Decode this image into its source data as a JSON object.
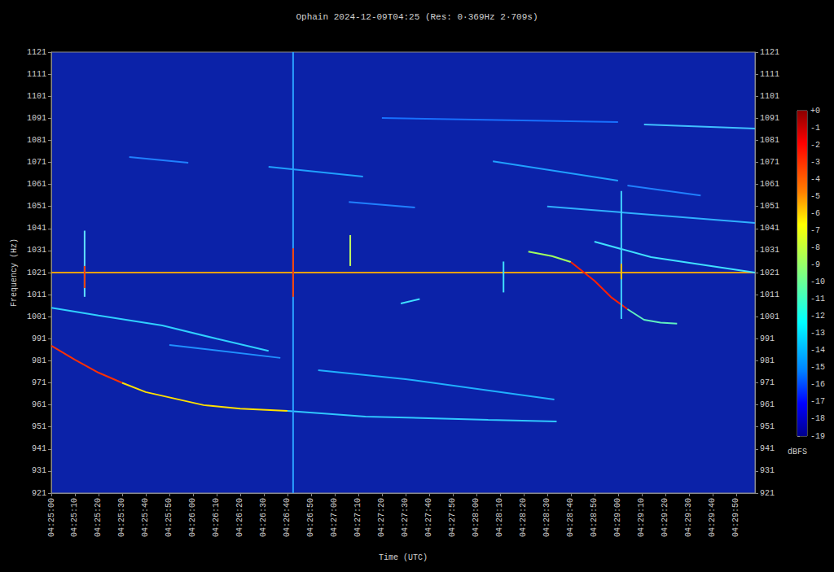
{
  "chart_data": {
    "type": "line",
    "title": "Ophain 2024-12-09T04:25 (Res: 0·369Hz 2·709s)",
    "x_label": "Time (UTC)",
    "y_label": "Frequency (Hz)",
    "xlim": [
      0,
      298
    ],
    "xticks": [
      {
        "value": 0,
        "label": "04:25:00"
      },
      {
        "value": 10,
        "label": "04:25:10"
      },
      {
        "value": 20,
        "label": "04:25:20"
      },
      {
        "value": 30,
        "label": "04:25:30"
      },
      {
        "value": 40,
        "label": "04:25:40"
      },
      {
        "value": 50,
        "label": "04:25:50"
      },
      {
        "value": 60,
        "label": "04:26:00"
      },
      {
        "value": 70,
        "label": "04:26:10"
      },
      {
        "value": 80,
        "label": "04:26:20"
      },
      {
        "value": 90,
        "label": "04:26:30"
      },
      {
        "value": 100,
        "label": "04:26:40"
      },
      {
        "value": 110,
        "label": "04:26:50"
      },
      {
        "value": 120,
        "label": "04:27:00"
      },
      {
        "value": 130,
        "label": "04:27:10"
      },
      {
        "value": 140,
        "label": "04:27:20"
      },
      {
        "value": 150,
        "label": "04:27:30"
      },
      {
        "value": 160,
        "label": "04:27:40"
      },
      {
        "value": 170,
        "label": "04:27:50"
      },
      {
        "value": 180,
        "label": "04:28:00"
      },
      {
        "value": 190,
        "label": "04:28:10"
      },
      {
        "value": 200,
        "label": "04:28:20"
      },
      {
        "value": 210,
        "label": "04:28:30"
      },
      {
        "value": 220,
        "label": "04:28:40"
      },
      {
        "value": 230,
        "label": "04:28:50"
      },
      {
        "value": 240,
        "label": "04:29:00"
      },
      {
        "value": 250,
        "label": "04:29:10"
      },
      {
        "value": 260,
        "label": "04:29:20"
      },
      {
        "value": 270,
        "label": "04:29:30"
      },
      {
        "value": 280,
        "label": "04:29:40"
      },
      {
        "value": 290,
        "label": "04:29:50"
      }
    ],
    "ylim": [
      921,
      1121
    ],
    "yticks": [
      921,
      931,
      941,
      951,
      961,
      971,
      981,
      991,
      1001,
      1011,
      1021,
      1031,
      1041,
      1051,
      1061,
      1071,
      1081,
      1091,
      1101,
      1111,
      1121
    ],
    "grid": false,
    "series": [
      {
        "color": "#ffa000",
        "values": [
          [
            0,
            1021
          ],
          [
            298,
            1021
          ]
        ]
      },
      {
        "color": "#ff3000",
        "values": [
          [
            0,
            987.8
          ],
          [
            10,
            981.5
          ],
          [
            20,
            975.6
          ],
          [
            30,
            971
          ]
        ]
      },
      {
        "color": "#ffe000",
        "values": [
          [
            30,
            971
          ],
          [
            40,
            966.8
          ],
          [
            64.5,
            960.9
          ],
          [
            80,
            959.3
          ],
          [
            100,
            958.3
          ]
        ]
      },
      {
        "color": "#30c8ff",
        "values": [
          [
            100,
            958.3
          ],
          [
            133,
            955.7
          ],
          [
            185,
            954.2
          ],
          [
            214,
            953.5
          ]
        ]
      },
      {
        "color": "#30d0ff",
        "values": [
          [
            0,
            1005
          ],
          [
            20,
            1001.5
          ],
          [
            47,
            997
          ],
          [
            70,
            991
          ],
          [
            92,
            985.5
          ]
        ]
      },
      {
        "color": "#2090ff",
        "values": [
          [
            50,
            988.2
          ],
          [
            97,
            982.3
          ]
        ]
      },
      {
        "color": "#20b0ff",
        "values": [
          [
            113,
            976.7
          ],
          [
            150,
            972.7
          ],
          [
            213,
            963.4
          ]
        ]
      },
      {
        "color": "#2080ff",
        "values": [
          [
            33,
            1073.4
          ],
          [
            58,
            1070.8
          ]
        ]
      },
      {
        "color": "#20a0ff",
        "values": [
          [
            92,
            1069
          ],
          [
            132,
            1064.5
          ]
        ]
      },
      {
        "color": "#20a0ff",
        "values": [
          [
            187,
            1071.5
          ],
          [
            240,
            1062.7
          ]
        ]
      },
      {
        "color": "#2080ff",
        "values": [
          [
            244,
            1060.5
          ],
          [
            275,
            1056
          ]
        ]
      },
      {
        "color": "#40c0ff",
        "values": [
          [
            251,
            1088.2
          ],
          [
            298,
            1086.3
          ]
        ]
      },
      {
        "color": "#1870ff",
        "values": [
          [
            140,
            1091.1
          ],
          [
            240,
            1089.3
          ]
        ]
      },
      {
        "color": "#2080ff",
        "values": [
          [
            126,
            1053
          ],
          [
            154,
            1050.5
          ]
        ]
      },
      {
        "color": "#30b0ff",
        "values": [
          [
            210,
            1051
          ],
          [
            298,
            1043.5
          ]
        ]
      },
      {
        "color": "#40e0ff",
        "values": [
          [
            230,
            1035
          ],
          [
            254,
            1028
          ],
          [
            298,
            1021
          ]
        ]
      },
      {
        "color": "#a0ff60",
        "values": [
          [
            202,
            1030.5
          ],
          [
            212,
            1028.5
          ],
          [
            220,
            1025.8
          ]
        ]
      },
      {
        "color": "#ff2000",
        "values": [
          [
            220,
            1025.8
          ],
          [
            230,
            1017.3
          ],
          [
            237,
            1009.9
          ],
          [
            244,
            1004.4
          ]
        ]
      },
      {
        "color": "#60f0c0",
        "values": [
          [
            244,
            1004.4
          ],
          [
            251,
            999.6
          ],
          [
            258,
            998.3
          ],
          [
            265,
            997.8
          ]
        ]
      },
      {
        "color": "#2aa0ff",
        "values": [
          [
            102.4,
            921
          ],
          [
            102.4,
            1121
          ]
        ]
      },
      {
        "color": "#ff4000",
        "values": [
          [
            102.4,
            1010
          ],
          [
            102.4,
            1032
          ]
        ]
      },
      {
        "color": "#40d0ff",
        "values": [
          [
            241.4,
            1000
          ],
          [
            241.4,
            1058
          ]
        ]
      },
      {
        "color": "#ffc000",
        "values": [
          [
            241.4,
            1018
          ],
          [
            241.4,
            1025
          ]
        ]
      },
      {
        "color": "#60e0ff",
        "values": [
          [
            14.1,
            1010
          ],
          [
            14.1,
            1040
          ]
        ]
      },
      {
        "color": "#ff4000",
        "values": [
          [
            14.1,
            1014
          ],
          [
            14.1,
            1024
          ]
        ]
      },
      {
        "color": "#c0ff60",
        "values": [
          [
            126.6,
            1024
          ],
          [
            126.6,
            1038
          ]
        ]
      },
      {
        "color": "#40e0ff",
        "values": [
          [
            191.5,
            1012
          ],
          [
            191.5,
            1026
          ]
        ]
      },
      {
        "color": "#40e0ff",
        "values": [
          [
            148,
            1007
          ],
          [
            156,
            1009
          ]
        ]
      }
    ],
    "colorbar": {
      "label": "dBFS",
      "range": [
        -19,
        0
      ],
      "ticks": [
        {
          "value": 0,
          "label": "+0"
        },
        -1,
        -2,
        -3,
        -4,
        -5,
        -6,
        -7,
        -8,
        -9,
        -10,
        -11,
        -12,
        -13,
        -14,
        -15,
        -16,
        -17,
        -18,
        -19
      ]
    }
  }
}
